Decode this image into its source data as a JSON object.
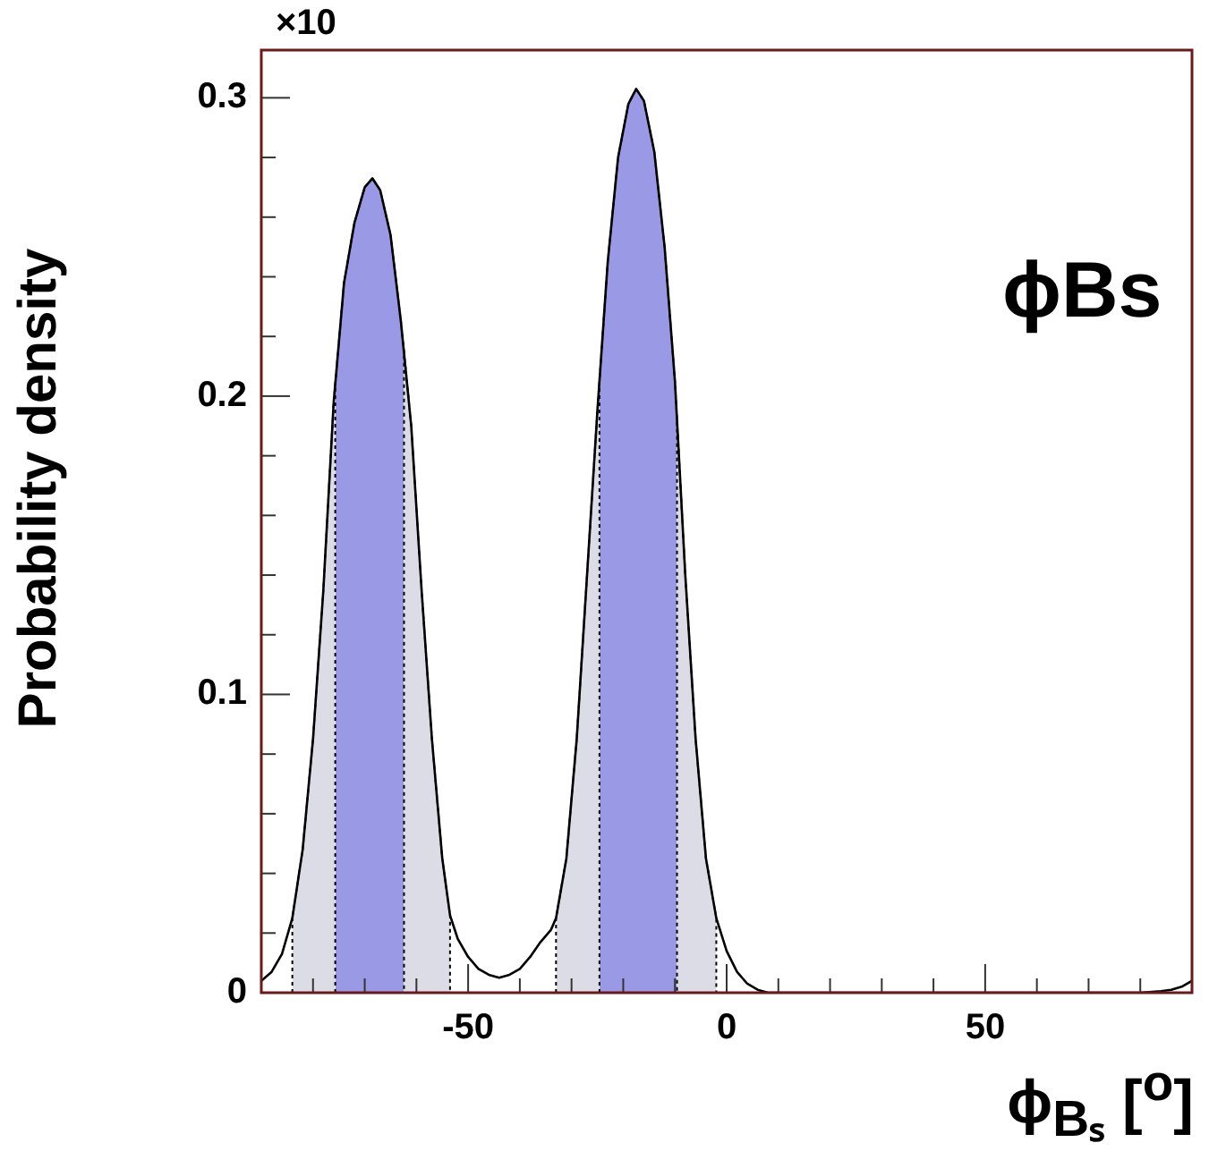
{
  "chart_data": {
    "type": "line",
    "xlabel": "ϕ$_{Bₛ}$ [$^{o}$]",
    "ylabel": "Probability density",
    "annotations": [
      "×10",
      "ϕBs"
    ],
    "xlim": [
      -90,
      90
    ],
    "ylim": [
      0,
      0.316
    ],
    "xticks": [
      {
        "value": -90,
        "label": null
      },
      {
        "value": -80,
        "label": null
      },
      {
        "value": -70,
        "label": null
      },
      {
        "value": -60,
        "label": null
      },
      -50,
      {
        "value": -40,
        "label": null
      },
      {
        "value": -30,
        "label": null
      },
      {
        "value": -20,
        "label": null
      },
      {
        "value": -10,
        "label": null
      },
      0,
      {
        "value": 10,
        "label": null
      },
      {
        "value": 20,
        "label": null
      },
      {
        "value": 30,
        "label": null
      },
      {
        "value": 40,
        "label": null
      },
      50,
      {
        "value": 60,
        "label": null
      },
      {
        "value": 70,
        "label": null
      },
      {
        "value": 80,
        "label": null
      },
      {
        "value": 90,
        "label": null
      }
    ],
    "yticks": [
      0,
      {
        "value": 0.02,
        "label": null
      },
      {
        "value": 0.04,
        "label": null
      },
      {
        "value": 0.06,
        "label": null
      },
      {
        "value": 0.08,
        "label": null
      },
      0.1,
      {
        "value": 0.12,
        "label": null
      },
      {
        "value": 0.14,
        "label": null
      },
      {
        "value": 0.16,
        "label": null
      },
      {
        "value": 0.18,
        "label": null
      },
      0.2,
      {
        "value": 0.22,
        "label": null
      },
      {
        "value": 0.24,
        "label": null
      },
      {
        "value": 0.26,
        "label": null
      },
      {
        "value": 0.28,
        "label": null
      },
      0.3
    ],
    "grid": false,
    "legend": false,
    "marker": "none",
    "series": [
      {
        "type": "line",
        "color": "#000000",
        "x": [
          -90,
          -88,
          -86,
          -84,
          -82,
          -80,
          -78,
          -76,
          -74,
          -72,
          -70,
          -68.5,
          -67,
          -65,
          -63,
          -61,
          -59,
          -57,
          -55,
          -53.5,
          -52,
          -50,
          -48,
          -46,
          -44,
          -42,
          -40,
          -38,
          -36,
          -34,
          -33,
          -31,
          -29,
          -27,
          -25,
          -23,
          -21,
          -19,
          -17.5,
          -16,
          -14,
          -12,
          -10,
          -8,
          -6,
          -4,
          -2,
          0,
          2,
          4,
          6,
          8,
          20,
          40,
          60,
          80,
          84,
          86,
          88,
          90
        ],
        "values": [
          0.004,
          0.007,
          0.013,
          0.025,
          0.048,
          0.085,
          0.135,
          0.198,
          0.238,
          0.258,
          0.27,
          0.273,
          0.269,
          0.254,
          0.225,
          0.19,
          0.135,
          0.085,
          0.045,
          0.026,
          0.018,
          0.012,
          0.008,
          0.006,
          0.005,
          0.006,
          0.008,
          0.012,
          0.017,
          0.021,
          0.025,
          0.045,
          0.085,
          0.14,
          0.195,
          0.245,
          0.28,
          0.298,
          0.303,
          0.299,
          0.282,
          0.25,
          0.205,
          0.14,
          0.085,
          0.045,
          0.025,
          0.014,
          0.007,
          0.003,
          0.001,
          0,
          0,
          0,
          0,
          0,
          0.0005,
          0.001,
          0.002,
          0.004
        ]
      },
      {
        "type": "area",
        "color": "#9999e6",
        "line_style": "dotted",
        "x": [
          -75.7,
          -75.7,
          -74,
          -72,
          -70,
          -68.5,
          -67,
          -65,
          -63,
          -62.4,
          -62.4
        ],
        "values": [
          0,
          0.204,
          0.238,
          0.258,
          0.27,
          0.273,
          0.269,
          0.254,
          0.225,
          0.215,
          0
        ]
      },
      {
        "type": "area",
        "color": "#9999e6",
        "line_style": "dotted",
        "x": [
          -24.6,
          -24.6,
          -23,
          -21,
          -19,
          -17.5,
          -16,
          -14,
          -12,
          -10,
          -9.6,
          -9.6
        ],
        "values": [
          0,
          0.205,
          0.245,
          0.28,
          0.298,
          0.303,
          0.299,
          0.282,
          0.25,
          0.205,
          0.192,
          0
        ]
      },
      {
        "type": "area",
        "color": "#dcdce6",
        "line_style": "dotted",
        "x": [
          -84,
          -84,
          -82,
          -80,
          -78,
          -76,
          -75.7
        ],
        "values": [
          0,
          0.025,
          0.048,
          0.085,
          0.135,
          0.198,
          0.204
        ]
      },
      {
        "type": "area",
        "color": "#dcdce6",
        "line_style": "dotted",
        "x": [
          -62.4,
          -61,
          -59,
          -57,
          -55,
          -53.5,
          -53.5
        ],
        "values": [
          0.215,
          0.19,
          0.135,
          0.085,
          0.045,
          0.026,
          0
        ]
      },
      {
        "type": "area",
        "color": "#dcdce6",
        "line_style": "dotted",
        "x": [
          -33,
          -33,
          -31,
          -29,
          -27,
          -25,
          -24.6
        ],
        "values": [
          0,
          0.025,
          0.045,
          0.085,
          0.14,
          0.195,
          0.205
        ]
      },
      {
        "type": "area",
        "color": "#dcdce6",
        "line_style": "dotted",
        "x": [
          -9.6,
          -8,
          -6,
          -4,
          -2,
          -2
        ],
        "values": [
          0.192,
          0.14,
          0.085,
          0.045,
          0.025,
          0
        ]
      }
    ]
  }
}
